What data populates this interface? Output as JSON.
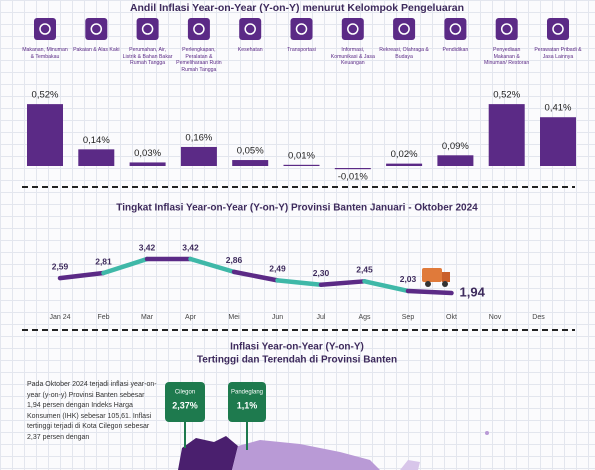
{
  "chart_data": [
    {
      "type": "bar",
      "title": "Andil Inflasi Year-on-Year (Y-on-Y) menurut Kelompok Pengeluaran",
      "categories": [
        "Makanan, Minuman & Tembakau",
        "Pakaian & Alas Kaki",
        "Perumahan, Air, Listrik & Bahan Bakar Rumah Tangga",
        "Perlengkapan, Peralatan & Pemeliharaan Rutin Rumah Tangga",
        "Kesehatan",
        "Transportasi",
        "Informasi, Komunikasi & Jasa Keuangan",
        "Rekreasi, Olahraga & Budaya",
        "Pendidikan",
        "Penyediaan Makanan & Minuman/ Restoran",
        "Perawatan Pribadi & Jasa Lainnya"
      ],
      "values": [
        0.52,
        0.14,
        0.03,
        0.16,
        0.05,
        0.01,
        -0.01,
        0.02,
        0.09,
        0.52,
        0.41
      ],
      "value_labels": [
        "0,52%",
        "0,14%",
        "0,03%",
        "0,16%",
        "0,05%",
        "0,01%",
        "-0,01%",
        "0,02%",
        "0,09%",
        "0,52%",
        "0,41%"
      ],
      "color": "#5b2a86"
    },
    {
      "type": "line",
      "title": "Tingkat Inflasi Year-on-Year (Y-on-Y) Provinsi Banten Januari - Oktober 2024",
      "categories": [
        "Jan 24",
        "Feb",
        "Mar",
        "Apr",
        "Mei",
        "Jun",
        "Jul",
        "Ags",
        "Sep",
        "Okt",
        "Nov",
        "Des"
      ],
      "values": [
        2.59,
        2.81,
        3.42,
        3.42,
        2.86,
        2.49,
        2.3,
        2.45,
        2.03,
        1.94,
        null,
        null
      ],
      "value_labels": [
        "2,59",
        "2,81",
        "3,42",
        "3,42",
        "2,86",
        "2,49",
        "2,30",
        "2,45",
        "2,03",
        "1,94",
        null,
        null
      ],
      "colors": [
        "#5b2a86",
        "#3fb8a8"
      ]
    }
  ],
  "map_section": {
    "title": "Inflasi Year-on-Year (Y-on-Y)",
    "subtitle": "Tertinggi dan Terendah di Provinsi Banten",
    "paragraph": "Pada Oktober 2024 terjadi inflasi year-on-year (y-on-y) Provinsi Banten sebesar 1,94 persen dengan Indeks Harga Konsumen (IHK) sebesar 105,61. Inflasi tertinggi terjadi di Kota Cilegon sebesar 2,37 persen dengan",
    "pins": [
      {
        "name": "Cilegon",
        "value": "2,37%"
      },
      {
        "name": "Pandeglang",
        "value": "1,1%"
      }
    ]
  }
}
